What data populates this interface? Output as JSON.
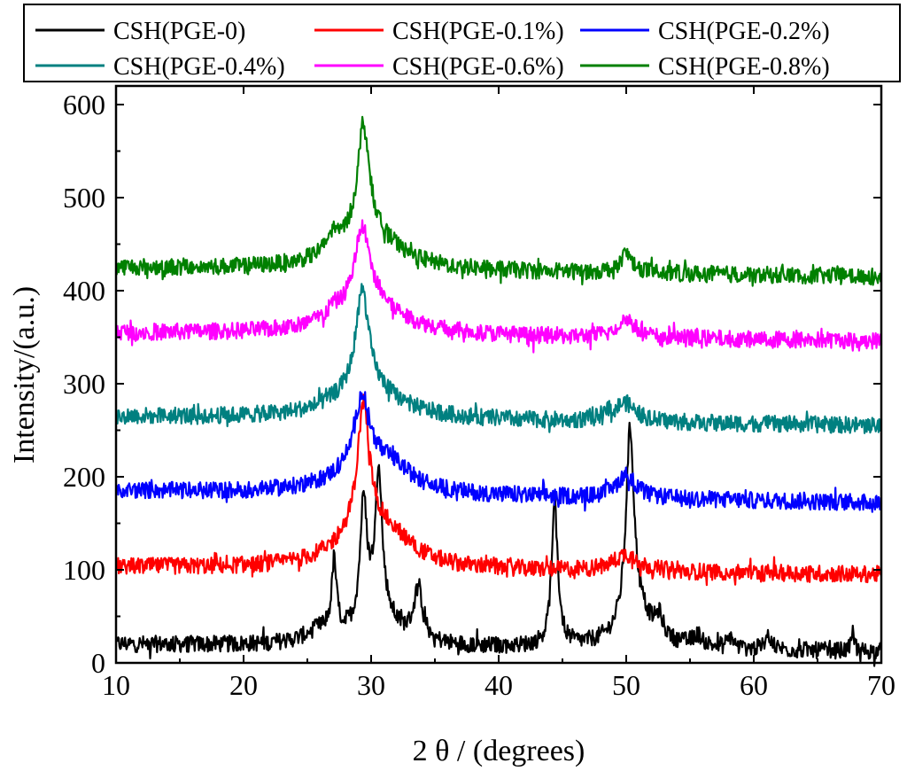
{
  "chart_data": {
    "type": "line",
    "title": "",
    "xlabel": "2 θ / (degrees)",
    "ylabel": "Intensity/(a.u.)",
    "xlim": [
      10,
      70
    ],
    "ylim": [
      0,
      620
    ],
    "xticks": [
      10,
      20,
      30,
      40,
      50,
      60,
      70
    ],
    "yticks": [
      0,
      100,
      200,
      300,
      400,
      500,
      600
    ],
    "grid": false,
    "legend_position": "top",
    "series": [
      {
        "name": "CSH(PGE-0)",
        "color": "#000000",
        "baseline": 20,
        "end": 12,
        "noise": 9,
        "peaks": [
          {
            "x": 26.2,
            "h": 15,
            "w": 1.6
          },
          {
            "x": 27.1,
            "h": 75,
            "w": 0.22
          },
          {
            "x": 29.4,
            "h": 125,
            "w": 0.32
          },
          {
            "x": 30.5,
            "h": 50,
            "w": 1.3
          },
          {
            "x": 30.6,
            "h": 140,
            "w": 0.28
          },
          {
            "x": 33.7,
            "h": 55,
            "w": 0.45
          },
          {
            "x": 44.4,
            "h": 150,
            "w": 0.3
          },
          {
            "x": 50.3,
            "h": 205,
            "w": 0.38
          },
          {
            "x": 50.8,
            "h": 35,
            "w": 1.6
          },
          {
            "x": 52.6,
            "h": 20,
            "w": 0.35
          },
          {
            "x": 55.6,
            "h": 12,
            "w": 0.5
          },
          {
            "x": 58.2,
            "h": 12,
            "w": 0.25
          },
          {
            "x": 61.2,
            "h": 15,
            "w": 0.3
          },
          {
            "x": 67.8,
            "h": 18,
            "w": 0.15
          }
        ]
      },
      {
        "name": "CSH(PGE-0.1%)",
        "color": "#ff0000",
        "baseline": 103,
        "end": 95,
        "noise": 9,
        "peaks": [
          {
            "x": 29.4,
            "h": 130,
            "w": 0.55
          },
          {
            "x": 29.6,
            "h": 45,
            "w": 2.6
          },
          {
            "x": 32.0,
            "h": 15,
            "w": 2.0
          },
          {
            "x": 50.0,
            "h": 18,
            "w": 1.2
          }
        ]
      },
      {
        "name": "CSH(PGE-0.2%)",
        "color": "#0000ff",
        "baseline": 185,
        "end": 172,
        "noise": 9,
        "peaks": [
          {
            "x": 29.3,
            "h": 75,
            "w": 0.7
          },
          {
            "x": 29.6,
            "h": 30,
            "w": 3.0
          },
          {
            "x": 31.8,
            "h": 15,
            "w": 1.6
          },
          {
            "x": 50.0,
            "h": 25,
            "w": 0.9
          }
        ]
      },
      {
        "name": "CSH(PGE-0.4%)",
        "color": "#008080",
        "baseline": 265,
        "end": 255,
        "noise": 9,
        "peaks": [
          {
            "x": 29.3,
            "h": 105,
            "w": 0.6
          },
          {
            "x": 29.6,
            "h": 35,
            "w": 3.0
          },
          {
            "x": 49.9,
            "h": 20,
            "w": 1.0
          },
          {
            "x": 48.4,
            "h": 10,
            "w": 0.3
          }
        ]
      },
      {
        "name": "CSH(PGE-0.6%)",
        "color": "#ff00ff",
        "baseline": 355,
        "end": 346,
        "noise": 9,
        "peaks": [
          {
            "x": 29.3,
            "h": 80,
            "w": 0.7
          },
          {
            "x": 29.7,
            "h": 38,
            "w": 3.0
          },
          {
            "x": 27.0,
            "h": 8,
            "w": 0.4
          },
          {
            "x": 50.0,
            "h": 20,
            "w": 0.8
          }
        ]
      },
      {
        "name": "CSH(PGE-0.8%)",
        "color": "#008000",
        "baseline": 425,
        "end": 415,
        "noise": 9,
        "peaks": [
          {
            "x": 29.4,
            "h": 120,
            "w": 0.55
          },
          {
            "x": 29.7,
            "h": 40,
            "w": 2.8
          },
          {
            "x": 27.0,
            "h": 18,
            "w": 0.6
          },
          {
            "x": 50.0,
            "h": 20,
            "w": 0.7
          }
        ]
      }
    ]
  }
}
